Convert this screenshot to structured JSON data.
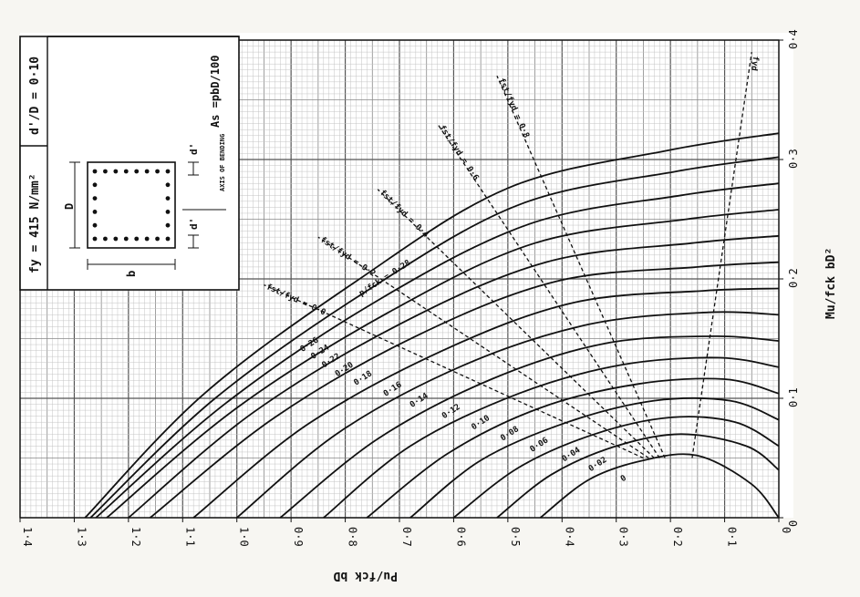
{
  "chart_data": {
    "type": "line",
    "x_label": "Pu/fck bD",
    "y_label": "Mu/fck bD²",
    "x_ticks": [
      "1·4",
      "1·3",
      "1·2",
      "1·1",
      "1·0",
      "0·9",
      "0·8",
      "0·7",
      "0·6",
      "0·5",
      "0·4",
      "0·3",
      "0·2",
      "0·1",
      "0"
    ],
    "y_ticks": [
      "0",
      "0·1",
      "0·2",
      "0·3",
      "0·4"
    ],
    "xlim": [
      0,
      1.4
    ],
    "ylim": [
      0,
      0.4
    ],
    "x_reversed": true,
    "grid": true,
    "info_box": {
      "fy": "fy = 415 N/mm²",
      "dD": "d'/D = 0·10",
      "as_formula": "As =pbD/100",
      "axis_of_bending": "AXIS OF BENDING",
      "dim_D": "D",
      "dim_b": "b",
      "dim_d1": "d'",
      "dim_d2": "d'"
    },
    "curve_title": "p/fck = 0·28",
    "series": [
      {
        "name": "0",
        "x": [
          0.44,
          0.35,
          0.25,
          0.15,
          0.05,
          0
        ],
        "y": [
          0,
          0.032,
          0.048,
          0.052,
          0.028,
          0
        ]
      },
      {
        "name": "0·02",
        "x": [
          0.52,
          0.42,
          0.3,
          0.18,
          0.06,
          0
        ],
        "y": [
          0,
          0.036,
          0.06,
          0.07,
          0.06,
          0.04
        ]
      },
      {
        "name": "0·04",
        "x": [
          0.6,
          0.48,
          0.34,
          0.2,
          0.08,
          0
        ],
        "y": [
          0,
          0.042,
          0.07,
          0.084,
          0.08,
          0.06
        ]
      },
      {
        "name": "0·06",
        "x": [
          0.68,
          0.55,
          0.39,
          0.23,
          0.09,
          0
        ],
        "y": [
          0,
          0.048,
          0.08,
          0.098,
          0.098,
          0.082
        ]
      },
      {
        "name": "0·08",
        "x": [
          0.76,
          0.61,
          0.44,
          0.26,
          0.1,
          0
        ],
        "y": [
          0,
          0.054,
          0.092,
          0.112,
          0.116,
          0.104
        ]
      },
      {
        "name": "0·10",
        "x": [
          0.84,
          0.68,
          0.48,
          0.29,
          0.11,
          0
        ],
        "y": [
          0,
          0.06,
          0.104,
          0.128,
          0.134,
          0.126
        ]
      },
      {
        "name": "0·12",
        "x": [
          0.92,
          0.74,
          0.53,
          0.32,
          0.12,
          0
        ],
        "y": [
          0,
          0.066,
          0.116,
          0.146,
          0.152,
          0.148
        ]
      },
      {
        "name": "0·14",
        "x": [
          1.0,
          0.81,
          0.58,
          0.35,
          0.13,
          0
        ],
        "y": [
          0,
          0.072,
          0.128,
          0.162,
          0.172,
          0.17
        ]
      },
      {
        "name": "0·16",
        "x": [
          1.08,
          0.87,
          0.62,
          0.38,
          0.14,
          0
        ],
        "y": [
          0,
          0.078,
          0.14,
          0.18,
          0.19,
          0.192
        ]
      },
      {
        "name": "0·18",
        "x": [
          1.16,
          0.93,
          0.67,
          0.41,
          0.15,
          0
        ],
        "y": [
          0,
          0.084,
          0.152,
          0.198,
          0.21,
          0.214
        ]
      },
      {
        "name": "0·20",
        "x": [
          1.2,
          0.97,
          0.7,
          0.43,
          0.16,
          0
        ],
        "y": [
          0,
          0.088,
          0.162,
          0.214,
          0.23,
          0.236
        ]
      },
      {
        "name": "0·22",
        "x": [
          1.24,
          1.0,
          0.72,
          0.45,
          0.17,
          0
        ],
        "y": [
          0,
          0.092,
          0.172,
          0.23,
          0.25,
          0.258
        ]
      },
      {
        "name": "0·24",
        "x": [
          1.26,
          1.02,
          0.74,
          0.46,
          0.18,
          0
        ],
        "y": [
          0,
          0.096,
          0.182,
          0.246,
          0.27,
          0.28
        ]
      },
      {
        "name": "0·26",
        "x": [
          1.27,
          1.04,
          0.76,
          0.48,
          0.19,
          0
        ],
        "y": [
          0,
          0.1,
          0.19,
          0.262,
          0.29,
          0.302
        ]
      },
      {
        "name": "0·28",
        "x": [
          1.28,
          1.06,
          0.78,
          0.5,
          0.2,
          0
        ],
        "y": [
          0,
          0.104,
          0.198,
          0.276,
          0.308,
          0.322
        ]
      }
    ],
    "dashed_lines": [
      {
        "name": "fst/fyd = 0·0",
        "x": [
          0.25,
          0.95
        ],
        "y": [
          0.05,
          0.195
        ]
      },
      {
        "name": "fst/fyd = 0·2",
        "x": [
          0.24,
          0.85
        ],
        "y": [
          0.05,
          0.235
        ]
      },
      {
        "name": "fst/fyd = 0·4",
        "x": [
          0.23,
          0.74
        ],
        "y": [
          0.05,
          0.275
        ]
      },
      {
        "name": "fst/fyd = 0·6",
        "x": [
          0.22,
          0.63
        ],
        "y": [
          0.05,
          0.33
        ]
      },
      {
        "name": "fst/fyd = 0·8",
        "x": [
          0.21,
          0.52
        ],
        "y": [
          0.05,
          0.37
        ]
      },
      {
        "name": "fyd",
        "x": [
          0.16,
          0.05
        ],
        "y": [
          0.05,
          0.39
        ]
      }
    ]
  }
}
